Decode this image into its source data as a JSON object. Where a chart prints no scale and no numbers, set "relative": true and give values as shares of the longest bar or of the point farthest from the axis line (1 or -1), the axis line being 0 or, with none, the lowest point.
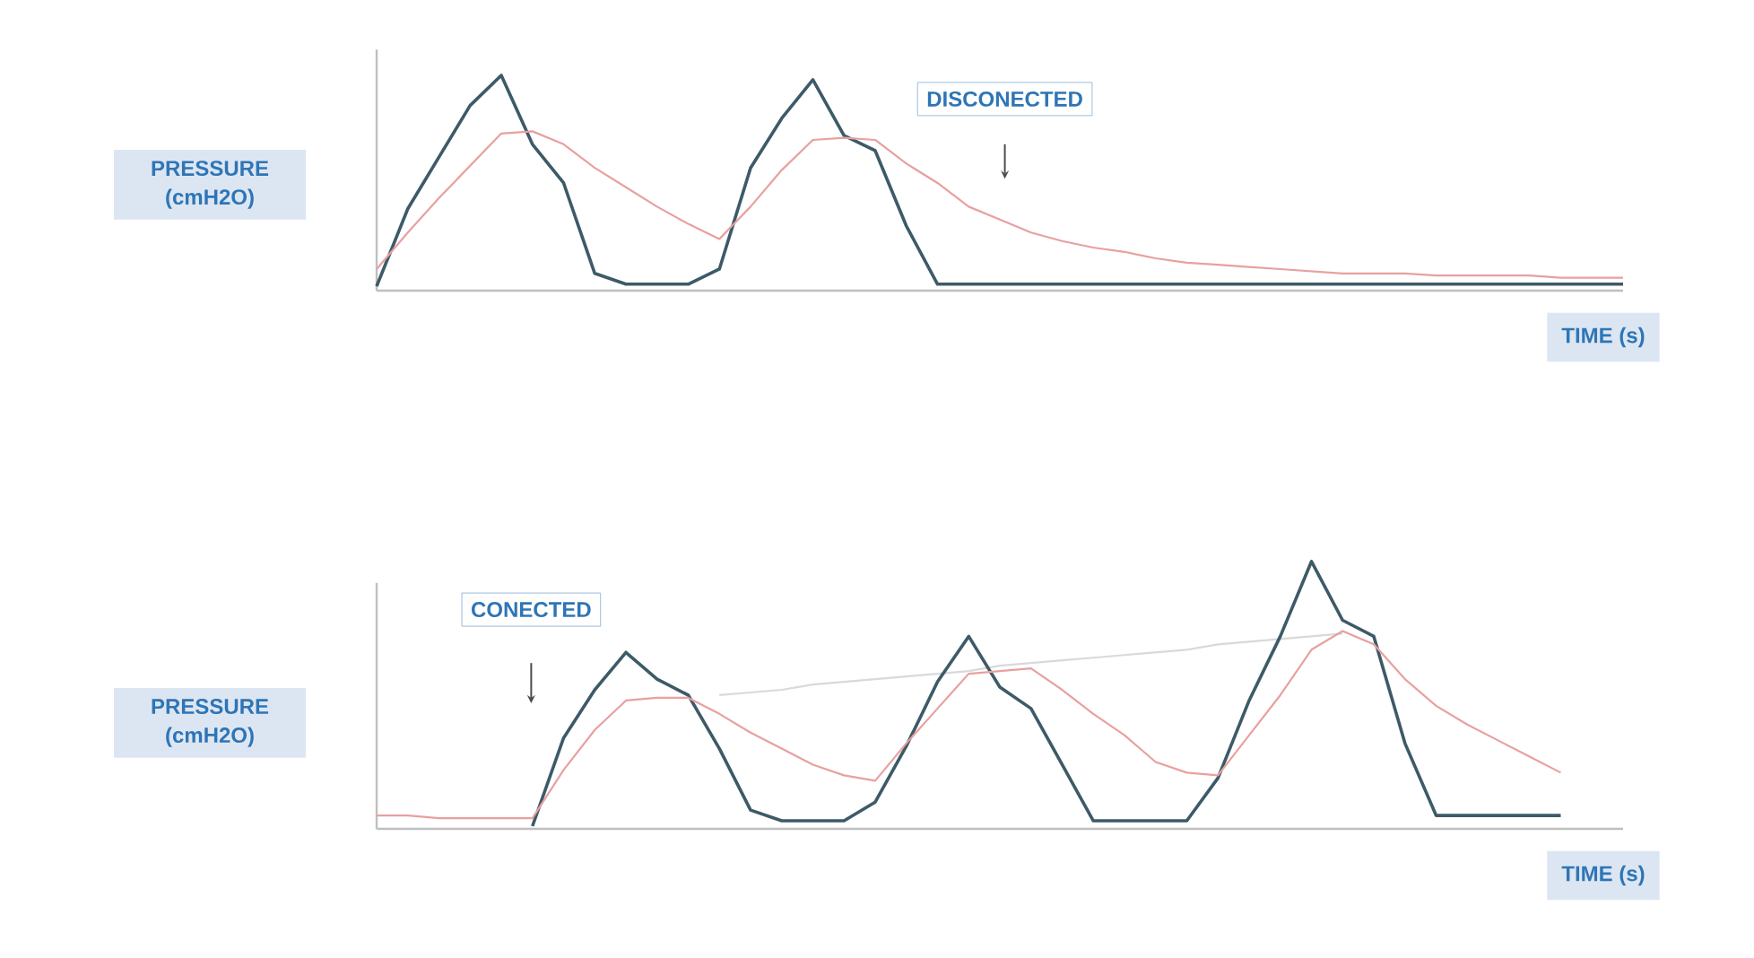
{
  "chart_data": [
    {
      "type": "line",
      "relative": true,
      "ylabel": "PRESSURE (cmH2O)",
      "xlabel": "TIME (s)",
      "annotations": [
        "DISCONECTED"
      ],
      "categories": [
        null,
        null,
        null,
        null,
        null,
        null,
        null,
        null,
        null,
        null,
        null,
        null,
        null,
        null,
        null,
        null,
        null,
        null,
        null,
        null,
        null,
        null,
        null,
        null,
        null,
        null,
        null,
        null,
        null,
        null,
        null,
        null,
        null,
        null,
        null,
        null,
        null,
        null,
        null,
        null,
        null
      ],
      "series": [
        {
          "color": "#3d5a68",
          "values": [
            0.02,
            0.38,
            0.62,
            0.86,
            1.0,
            0.68,
            0.5,
            0.08,
            0.03,
            0.03,
            0.03,
            0.1,
            0.57,
            0.8,
            0.98,
            0.72,
            0.65,
            0.3,
            0.03,
            0.03,
            0.03,
            0.03,
            0.03,
            0.03,
            0.03,
            0.03,
            0.03,
            0.03,
            0.03,
            0.03,
            0.03,
            0.03,
            0.03,
            0.03,
            0.03,
            0.03,
            0.03,
            0.03,
            0.03,
            0.03,
            0.03
          ]
        },
        {
          "color": "#e8a0a0",
          "values": [
            0.1,
            0.27,
            0.43,
            0.58,
            0.73,
            0.74,
            0.68,
            0.57,
            0.48,
            0.39,
            0.31,
            0.24,
            0.39,
            0.56,
            0.7,
            0.71,
            0.7,
            0.59,
            0.5,
            0.39,
            0.33,
            0.27,
            0.23,
            0.2,
            0.18,
            0.15,
            0.13,
            0.12,
            0.11,
            0.1,
            0.09,
            0.08,
            0.08,
            0.08,
            0.07,
            0.07,
            0.07,
            0.07,
            0.06,
            0.06,
            0.06
          ]
        }
      ]
    },
    {
      "type": "line",
      "relative": true,
      "ylabel": "PRESSURE (cmH2O)",
      "xlabel": "TIME (s)",
      "annotations": [
        "CONECTED"
      ],
      "categories": [
        null,
        null,
        null,
        null,
        null,
        null,
        null,
        null,
        null,
        null,
        null,
        null,
        null,
        null,
        null,
        null,
        null,
        null,
        null,
        null,
        null,
        null,
        null,
        null,
        null,
        null,
        null,
        null,
        null,
        null,
        null,
        null,
        null,
        null,
        null,
        null,
        null,
        null,
        null,
        null,
        null
      ],
      "series": [
        {
          "color": "#d9d9d9",
          "values": [
            null,
            null,
            null,
            null,
            null,
            null,
            null,
            null,
            null,
            null,
            null,
            0.5,
            0.51,
            0.52,
            0.54,
            0.55,
            0.56,
            0.57,
            0.58,
            0.59,
            0.61,
            0.62,
            0.63,
            0.64,
            0.65,
            0.66,
            0.67,
            0.69,
            0.7,
            0.71,
            0.72,
            0.73,
            null,
            null,
            null,
            null,
            null,
            null,
            null,
            null,
            null
          ]
        },
        {
          "color": "#3d5a68",
          "values": [
            null,
            null,
            null,
            null,
            null,
            0.01,
            0.34,
            0.52,
            0.66,
            0.56,
            0.5,
            0.3,
            0.07,
            0.03,
            0.03,
            0.03,
            0.1,
            0.31,
            0.55,
            0.72,
            0.53,
            0.45,
            0.24,
            0.03,
            0.03,
            0.03,
            0.03,
            0.19,
            0.48,
            0.72,
            1.0,
            0.78,
            0.72,
            0.32,
            0.05,
            0.05,
            0.05,
            0.05,
            0.05,
            null,
            null
          ]
        },
        {
          "color": "#e8a0a0",
          "values": [
            0.05,
            0.05,
            0.04,
            0.04,
            0.04,
            0.04,
            0.22,
            0.37,
            0.48,
            0.49,
            0.49,
            0.43,
            0.36,
            0.3,
            0.24,
            0.2,
            0.18,
            0.32,
            0.45,
            0.58,
            0.59,
            0.6,
            0.52,
            0.43,
            0.35,
            0.25,
            0.21,
            0.2,
            0.35,
            0.5,
            0.67,
            0.74,
            0.69,
            0.56,
            0.46,
            0.39,
            0.33,
            0.27,
            0.21,
            null,
            null
          ]
        }
      ]
    }
  ]
}
